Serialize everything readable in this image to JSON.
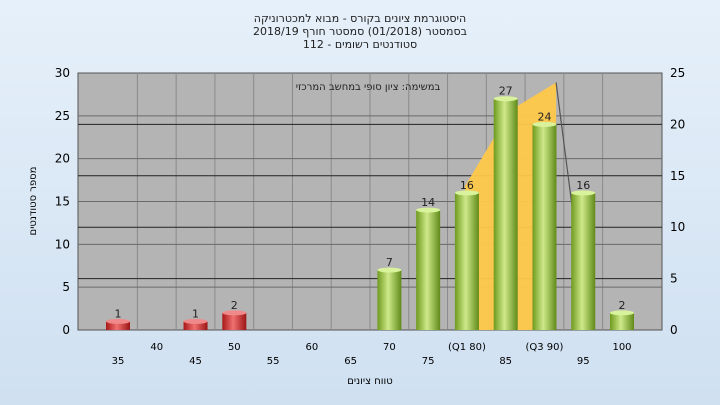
{
  "titles": [
    "היסטוגרמת ציונים בקורס - מבוא למכטרוניקה",
    "בסמסטר  (01/2018)  סמסטר חורף 2018/19",
    "סטודנטים רשומים - 112"
  ],
  "colors": {
    "plot_bg": "#b4b4b4",
    "bar_red": "#d42a2a",
    "bar_green": "#98c13c",
    "iqr": "#ffc94a"
  },
  "chart_data": {
    "type": "bar",
    "categories": [
      "35",
      "40",
      "45",
      "50",
      "55",
      "60",
      "65",
      "70",
      "75",
      "(Q1 80)",
      "85",
      "(Q3 90)",
      "95",
      "100"
    ],
    "values": [
      1,
      0,
      1,
      2,
      0,
      0,
      0,
      7,
      14,
      16,
      27,
      24,
      16,
      2
    ],
    "bar_colors": [
      "red",
      "",
      "red",
      "red",
      "",
      "",
      "",
      "green",
      "green",
      "green",
      "green",
      "green",
      "green",
      "green"
    ],
    "ylabel": "מספר סטודנטים",
    "xlabel": "טווח ציונים",
    "ylim": [
      0,
      30
    ],
    "y2lim": [
      0,
      25
    ],
    "yticks": [
      0,
      5,
      10,
      15,
      20,
      25,
      30
    ],
    "y2ticks": [
      0,
      5,
      10,
      15,
      20,
      25
    ],
    "annotation": "במשימה: ציון סופי במחשב המרכזי",
    "grid": true
  }
}
